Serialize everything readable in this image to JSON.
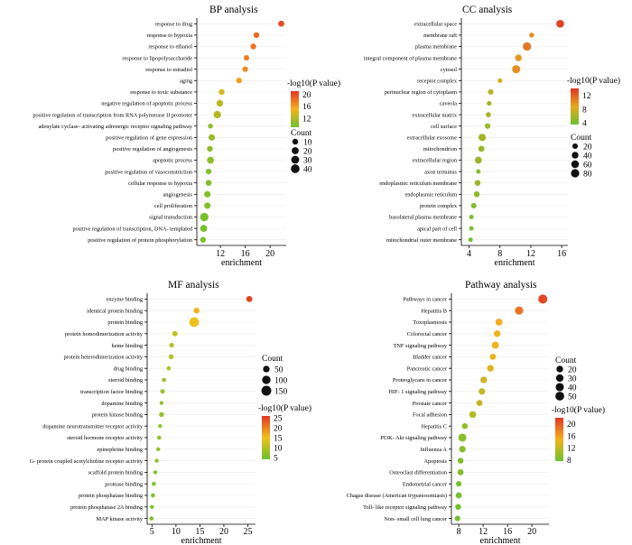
{
  "chart_data": [
    {
      "type": "scatter",
      "title": "BP analysis",
      "xlabel": "enrichment",
      "xticks": [
        12,
        16,
        20
      ],
      "xlim": [
        8.2,
        22.6
      ],
      "categories": [
        "response to drug",
        "response to hypoxia",
        "response to ethanol",
        "response to lipopolysaccharide",
        "response to estradiol",
        "aging",
        "response to toxic substance",
        "negative regulation of apoptotic process",
        "positive regulation of transcription from RNA polymerase II promoter",
        "adenylate cyclase- activating adrenergic receptor signaling pathway",
        "positive regulation of gene expression",
        "positive regulation of angiogenesis",
        "apoptotic process",
        "positive regulation of vasoconstriction",
        "cellular response to hypoxia",
        "angiogenesis",
        "cell proliferation",
        "signal transduction",
        "positive regulation of transcription, DNA- templated",
        "positive regulation of protein phosphorylation"
      ],
      "enrichment": [
        21.8,
        17.8,
        17.3,
        16.2,
        16.0,
        15.0,
        12.2,
        11.9,
        11.5,
        10.4,
        10.6,
        10.3,
        10.4,
        10.1,
        10.1,
        9.9,
        9.9,
        9.4,
        9.3,
        9.2
      ],
      "neg_log10_p": [
        20,
        18.5,
        18,
        17.5,
        17,
        16,
        13.5,
        12.5,
        12,
        10.5,
        11,
        10.5,
        10.5,
        10,
        10,
        10,
        10,
        9.5,
        9.5,
        9.5
      ],
      "count": [
        12,
        10,
        10,
        8,
        8,
        9,
        10,
        17,
        25,
        5,
        15,
        10,
        20,
        9,
        11,
        15,
        15,
        36,
        20,
        10
      ],
      "size_legend": {
        "title": "Count",
        "values": [
          10,
          20,
          30,
          40
        ]
      },
      "color_legend": {
        "title": "-log10(P value)",
        "ticks": [
          20,
          16,
          12
        ],
        "range": [
          9,
          21
        ],
        "colors": [
          "#6cc12e",
          "#f5b21d",
          "#e23625"
        ]
      }
    },
    {
      "type": "scatter",
      "title": "CC analysis",
      "xlabel": "enrichment",
      "xticks": [
        4,
        8,
        12,
        16
      ],
      "xlim": [
        3.0,
        16.8
      ],
      "categories": [
        "extracellular space",
        "membrane raft",
        "plasma membrane",
        "integral component of plasma membrane",
        "cytosol",
        "receptor complex",
        "perinuclear region of cytoplasm",
        "caveola",
        "extracellular matrix",
        "cell surface",
        "extracellular exosome",
        "mitochondrion",
        "extracellular region",
        "axon terminus",
        "endoplasmic reticulum membrane",
        "endoplasmic reticulum",
        "protein complex",
        "basolateral plasma membrane",
        "apical part of cell",
        "mitochondrial outer membrane"
      ],
      "enrichment": [
        15.8,
        12.1,
        11.5,
        10.4,
        10.1,
        8.0,
        6.8,
        6.6,
        6.5,
        6.4,
        5.7,
        5.6,
        5.2,
        5.2,
        5.1,
        5.0,
        4.6,
        4.3,
        4.3,
        4.2
      ],
      "neg_log10_p": [
        13.5,
        10,
        11,
        9.5,
        10,
        8,
        6.5,
        6,
        6,
        5.5,
        6,
        5.5,
        5.5,
        4.5,
        5.5,
        5,
        4.5,
        4,
        4,
        4
      ],
      "count": [
        65,
        12,
        80,
        40,
        75,
        10,
        20,
        10,
        15,
        20,
        55,
        30,
        45,
        8,
        25,
        25,
        20,
        8,
        8,
        8
      ],
      "size_legend": {
        "title": "Count",
        "values": [
          20,
          40,
          60,
          80
        ]
      },
      "color_legend": {
        "title": "-log10(P value)",
        "ticks": [
          12,
          8,
          4
        ],
        "range": [
          3.5,
          14
        ],
        "colors": [
          "#6cc12e",
          "#e6a81e",
          "#e23625"
        ]
      }
    },
    {
      "type": "scatter",
      "title": "MF analysis",
      "xlabel": "enrichment",
      "xticks": [
        5,
        10,
        15,
        20,
        25
      ],
      "xlim": [
        4.0,
        26.6
      ],
      "categories": [
        "enzyme binding",
        "identical protein binding",
        "protein binding",
        "protein homodimerization activity",
        "heme binding",
        "protein heterodimerization activity",
        "drug binding",
        "steroid binding",
        "transcription factor binding",
        "dopamine binding",
        "protein kinase binding",
        "dopamine neurotransmitter receptor activity",
        "steroid hormone receptor activity",
        "epinephrine binding",
        "G- protein coupled acetylcholine receptor activity",
        "scaffold protein binding",
        "protease binding",
        "protein phosphatase binding",
        "protein phosphatase 2A binding",
        "MAP kinase activity"
      ],
      "enrichment": [
        25.3,
        14.3,
        13.8,
        9.8,
        9.1,
        9.0,
        8.5,
        7.5,
        7.2,
        7.0,
        7.0,
        6.7,
        6.5,
        6.3,
        6.0,
        5.7,
        5.4,
        5.2,
        5.0,
        4.9
      ],
      "neg_log10_p": [
        25,
        16,
        14.5,
        11,
        10,
        10,
        9.5,
        8,
        8,
        7.5,
        7.5,
        7,
        7,
        7,
        6.5,
        6,
        6,
        5.5,
        5.5,
        5
      ],
      "count": [
        40,
        35,
        145,
        25,
        15,
        20,
        10,
        10,
        15,
        8,
        20,
        8,
        10,
        8,
        8,
        8,
        10,
        10,
        8,
        10
      ],
      "size_legend": {
        "title": "Count",
        "values": [
          50,
          100,
          150
        ]
      },
      "color_legend": {
        "title": "-log10(P value)",
        "ticks": [
          25,
          20,
          15,
          10,
          5
        ],
        "range": [
          4,
          26
        ],
        "colors": [
          "#6cc12e",
          "#f2c01e",
          "#e23625"
        ]
      }
    },
    {
      "type": "scatter",
      "title": "Pathway analysis",
      "xlabel": "enrichment",
      "xticks": [
        8,
        12,
        16,
        20
      ],
      "xlim": [
        6.8,
        22.8
      ],
      "categories": [
        "Pathways in cancer",
        "Hepatitis B",
        "Toxoplasmosis",
        "Colorectal cancer",
        "TNF signaling pathway",
        "Bladder cancer",
        "Pancreatic cancer",
        "Proteoglycans in cancer",
        "HIF- 1 signaling pathway",
        "Prostate cancer",
        "Focal adhesion",
        "Hepatitis C",
        "PI3K- Akt signaling pathway",
        "Influenza A",
        "Apoptosis",
        "Osteoclast differentiation",
        "Endometrial cancer",
        "Chagas disease (American trypanosomiasis)",
        "Toll- like receptor signaling pathway",
        "Non- small cell lung cancer"
      ],
      "enrichment": [
        21.8,
        17.9,
        14.6,
        14.3,
        14.0,
        13.6,
        13.2,
        12.1,
        11.8,
        11.4,
        10.3,
        9.0,
        8.6,
        8.6,
        8.3,
        8.3,
        8.0,
        8.0,
        7.9,
        7.8
      ],
      "neg_log10_p": [
        21,
        18.5,
        15,
        14.5,
        14.5,
        14,
        13.5,
        12.5,
        12,
        12,
        11,
        9.5,
        9,
        9,
        8.5,
        8.5,
        8,
        8,
        8,
        8
      ],
      "count": [
        55,
        40,
        25,
        20,
        25,
        15,
        20,
        20,
        18,
        15,
        22,
        12,
        38,
        20,
        12,
        15,
        10,
        15,
        12,
        10
      ],
      "size_legend": {
        "title": "Count",
        "values": [
          20,
          30,
          40,
          50
        ]
      },
      "color_legend": {
        "title": "-log10(P value)",
        "ticks": [
          20,
          16,
          12,
          8
        ],
        "range": [
          7.5,
          22
        ],
        "colors": [
          "#6cc12e",
          "#f5b21d",
          "#e23625"
        ]
      }
    }
  ]
}
